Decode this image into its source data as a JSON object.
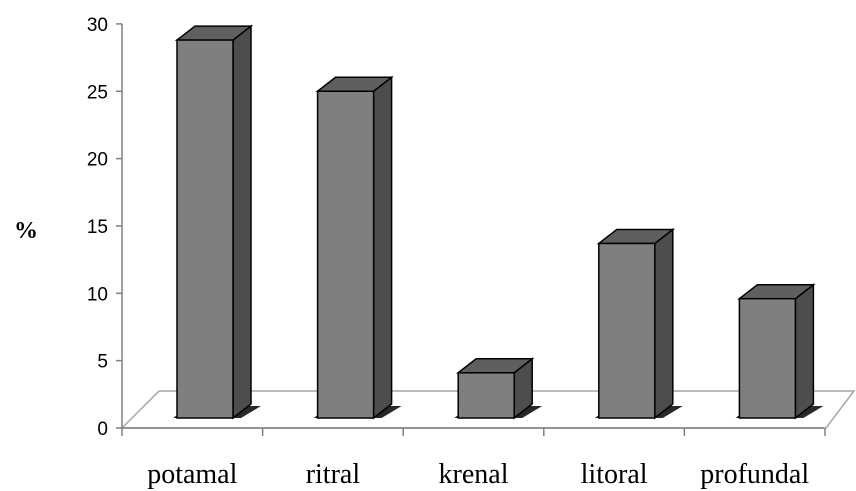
{
  "chart_data": {
    "type": "bar",
    "categories": [
      "potamal",
      "ritral",
      "krenal",
      "litoral",
      "profundal"
    ],
    "values": [
      28.8,
      25,
      4.1,
      13.7,
      9.6
    ],
    "title": "",
    "xlabel": "",
    "ylabel": "%",
    "ylim": [
      0,
      30
    ],
    "yticks": [
      "0",
      "5",
      "10",
      "15",
      "20",
      "25",
      "30"
    ],
    "grid": false,
    "legend": "none",
    "style": "3d-column",
    "colors": {
      "bar_front": "#7f7f7f",
      "bar_side": "#4d4d4d",
      "bar_top": "#5f5f5f",
      "outline": "#000000",
      "floor": "#ffffff",
      "floor_edge": "#a6a6a6"
    }
  }
}
